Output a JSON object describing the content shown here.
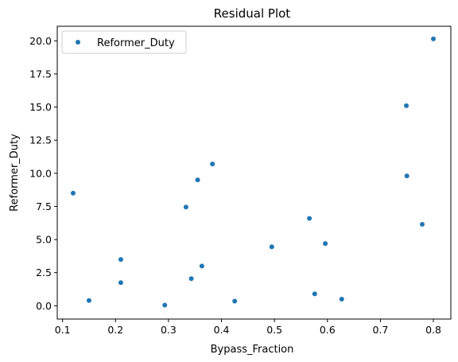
{
  "chart_data": {
    "type": "scatter",
    "title": "Residual Plot",
    "xlabel": "Bypass_Fraction",
    "ylabel": "Reformer_Duty",
    "xlim": [
      0.09,
      0.833
    ],
    "ylim": [
      -1.0,
      21.1
    ],
    "xticks": [
      0.1,
      0.2,
      0.3,
      0.4,
      0.5,
      0.6,
      0.7,
      0.8
    ],
    "xtick_labels": [
      "0.1",
      "0.2",
      "0.3",
      "0.4",
      "0.5",
      "0.6",
      "0.7",
      "0.8"
    ],
    "yticks": [
      0.0,
      2.5,
      5.0,
      7.5,
      10.0,
      12.5,
      15.0,
      17.5,
      20.0
    ],
    "ytick_labels": [
      "0.0",
      "2.5",
      "5.0",
      "7.5",
      "10.0",
      "12.5",
      "15.0",
      "17.5",
      "20.0"
    ],
    "grid": false,
    "legend_position": "top-left",
    "series": [
      {
        "name": "Reformer_Duty",
        "color": "#1f77b4",
        "x": [
          0.12,
          0.15,
          0.21,
          0.21,
          0.293,
          0.333,
          0.343,
          0.355,
          0.363,
          0.383,
          0.425,
          0.495,
          0.566,
          0.576,
          0.596,
          0.627,
          0.749,
          0.75,
          0.779,
          0.8
        ],
        "y": [
          8.5,
          0.4,
          3.5,
          1.75,
          0.05,
          7.45,
          2.05,
          9.5,
          3.0,
          10.7,
          0.35,
          4.45,
          6.6,
          0.9,
          4.7,
          0.5,
          15.1,
          9.8,
          6.15,
          20.15
        ]
      }
    ]
  }
}
